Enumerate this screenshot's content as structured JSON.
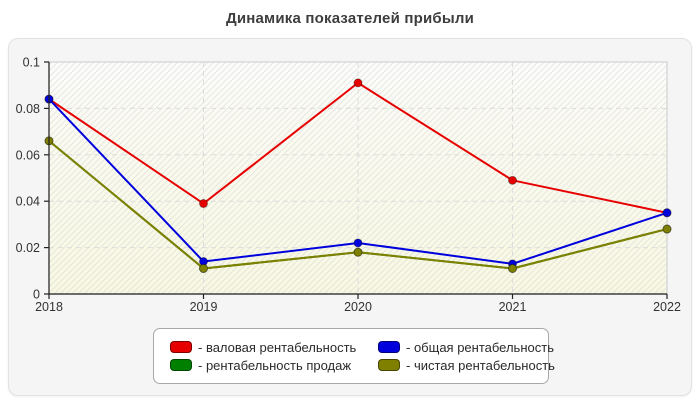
{
  "page": {
    "title": "Динамика показателей прибыли"
  },
  "legend": {
    "prefix": "- ",
    "position": "bottom-center",
    "border_color": "#a8a8a8",
    "background": "#ffffff"
  },
  "panel": {
    "background": "#f5f5f5",
    "plot_background_top": "#fcfcfc",
    "plot_background_bottom": "#f8f8e2",
    "gridline_color": "#dcdcdc",
    "axis_color": "#222222",
    "tick_label_color": "#333333"
  },
  "chart_data": {
    "type": "line",
    "title": "Динамика показателей прибыли",
    "categories": [
      "2018",
      "2019",
      "2020",
      "2021",
      "2022"
    ],
    "series": [
      {
        "name": "валовая рентабельность",
        "color": "#e60000",
        "values": [
          0.084,
          0.039,
          0.091,
          0.049,
          0.035
        ]
      },
      {
        "name": "общая рентабельность",
        "color": "#0000dd",
        "values": [
          0.084,
          0.014,
          0.022,
          0.013,
          0.035
        ]
      },
      {
        "name": "рентабельность продаж",
        "color": "#008000",
        "values": [
          0.066,
          0.011,
          0.018,
          0.011,
          0.028
        ]
      },
      {
        "name": "чистая рентабельность",
        "color": "#808000",
        "values": [
          0.066,
          0.011,
          0.018,
          0.011,
          0.028
        ]
      }
    ],
    "xlabel": "",
    "ylabel": "",
    "ylim": [
      0,
      0.1
    ],
    "yticks": {
      "values": [
        0,
        0.02,
        0.04,
        0.06,
        0.08,
        0.1
      ],
      "labels": [
        "0",
        "0.02",
        "0.04",
        "0.06",
        "0.08",
        "0.1"
      ]
    },
    "grid": "dashed horizontal and vertical gridlines, hatched gradient plot background",
    "legend_position": "bottom-center",
    "occlusion_note": "series 'рентабельность продаж' is fully hidden behind 'чистая рентабельность'; markers drawn later cover earlier ones",
    "marker": "filled circle with dark outline"
  }
}
